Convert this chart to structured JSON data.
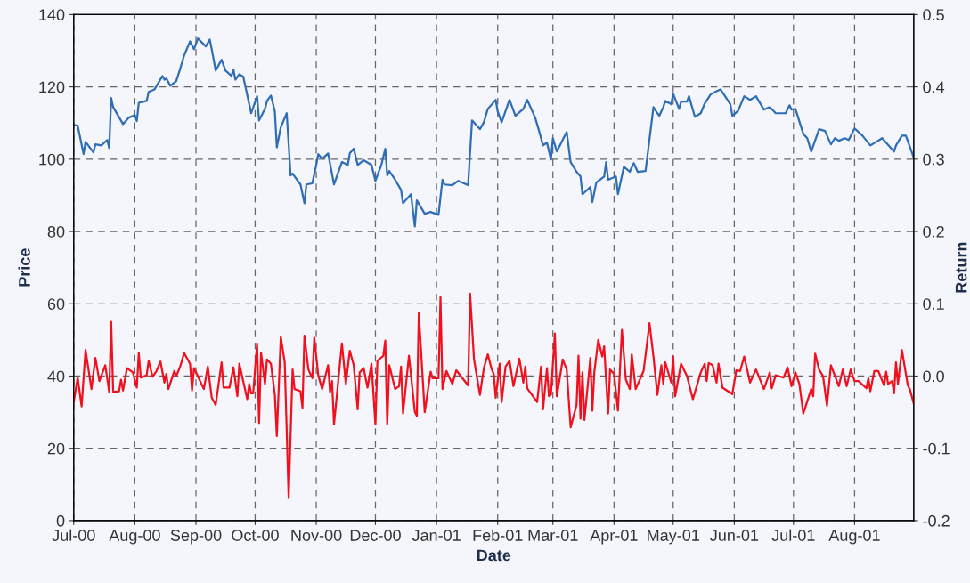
{
  "chart_data": {
    "type": "line",
    "xlabel": "Date",
    "ylabel": "Price",
    "y2label": "Return",
    "xlim": [
      "2000-07-01",
      "2001-08-31"
    ],
    "xticks": [
      {
        "value": "2000-07-01",
        "label": "Jul-00"
      },
      {
        "value": "2000-08-01",
        "label": "Aug-00"
      },
      {
        "value": "2000-09-01",
        "label": "Sep-00"
      },
      {
        "value": "2000-10-01",
        "label": "Oct-00"
      },
      {
        "value": "2000-11-01",
        "label": "Nov-00"
      },
      {
        "value": "2000-12-01",
        "label": "Dec-00"
      },
      {
        "value": "2001-01-01",
        "label": "Jan-01"
      },
      {
        "value": "2001-02-01",
        "label": "Feb-01"
      },
      {
        "value": "2001-03-01",
        "label": "Mar-01"
      },
      {
        "value": "2001-04-01",
        "label": "Apr-01"
      },
      {
        "value": "2001-05-01",
        "label": "May-01"
      },
      {
        "value": "2001-06-01",
        "label": "Jun-01"
      },
      {
        "value": "2001-07-01",
        "label": "Jul-01"
      },
      {
        "value": "2001-08-01",
        "label": "Aug-01"
      }
    ],
    "ylim": [
      0,
      140
    ],
    "yticks": [
      0,
      20,
      40,
      60,
      80,
      100,
      120,
      140
    ],
    "y2lim": [
      -0.2,
      0.5
    ],
    "y2ticks": [
      {
        "value": -0.2,
        "label": "-0.2"
      },
      {
        "value": -0.1,
        "label": "-0.1"
      },
      {
        "value": 0.0,
        "label": "0.0"
      },
      {
        "value": 0.1,
        "label": "0.1"
      },
      {
        "value": 0.2,
        "label": "0.2"
      },
      {
        "value": 0.3,
        "label": "0.3"
      },
      {
        "value": 0.4,
        "label": "0.4"
      },
      {
        "value": 0.5,
        "label": "0.5"
      }
    ],
    "grid": true,
    "series": [
      {
        "axis": "y",
        "color": "#2f6db5",
        "x": [
          "2000-07-01",
          "2000-07-03",
          "2000-07-06",
          "2000-07-07",
          "2000-07-11",
          "2000-07-12",
          "2000-07-15",
          "2000-07-18",
          "2000-07-19",
          "2000-07-20",
          "2000-07-21",
          "2000-07-26",
          "2000-07-29",
          "2000-08-01",
          "2000-08-02",
          "2000-08-03",
          "2000-08-07",
          "2000-08-08",
          "2000-08-11",
          "2000-08-15",
          "2000-08-16",
          "2000-08-17",
          "2000-08-19",
          "2000-08-22",
          "2000-08-24",
          "2000-08-26",
          "2000-08-29",
          "2000-08-31",
          "2000-09-02",
          "2000-09-06",
          "2000-09-08",
          "2000-09-09",
          "2000-09-11",
          "2000-09-14",
          "2000-09-16",
          "2000-09-19",
          "2000-09-20",
          "2000-09-21",
          "2000-09-23",
          "2000-09-25",
          "2000-09-29",
          "2000-10-02",
          "2000-10-03",
          "2000-10-06",
          "2000-10-07",
          "2000-10-09",
          "2000-10-11",
          "2000-10-12",
          "2000-10-14",
          "2000-10-17",
          "2000-10-19",
          "2000-10-20",
          "2000-10-24",
          "2000-10-26",
          "2000-10-27",
          "2000-10-30",
          "2000-11-01",
          "2000-11-02",
          "2000-11-04",
          "2000-11-07",
          "2000-11-10",
          "2000-11-14",
          "2000-11-17",
          "2000-11-18",
          "2000-11-20",
          "2000-11-22",
          "2000-11-25",
          "2000-11-29",
          "2000-12-01",
          "2000-12-04",
          "2000-12-06",
          "2000-12-07",
          "2000-12-08",
          "2000-12-11",
          "2000-12-14",
          "2000-12-15",
          "2000-12-19",
          "2000-12-21",
          "2000-12-22",
          "2000-12-26",
          "2000-12-29",
          "2001-01-02",
          "2001-01-04",
          "2001-01-05",
          "2001-01-09",
          "2001-01-12",
          "2001-01-17",
          "2001-01-19",
          "2001-01-23",
          "2001-01-25",
          "2001-01-27",
          "2001-01-31",
          "2001-02-01",
          "2001-02-03",
          "2001-02-07",
          "2001-02-10",
          "2001-02-14",
          "2001-02-16",
          "2001-02-20",
          "2001-02-22",
          "2001-02-24",
          "2001-02-26",
          "2001-02-28",
          "2001-03-01",
          "2001-03-03",
          "2001-03-08",
          "2001-03-10",
          "2001-03-13",
          "2001-03-15",
          "2001-03-16",
          "2001-03-20",
          "2001-03-21",
          "2001-03-23",
          "2001-03-27",
          "2001-03-28",
          "2001-03-29",
          "2001-04-02",
          "2001-04-03",
          "2001-04-06",
          "2001-04-09",
          "2001-04-11",
          "2001-04-13",
          "2001-04-17",
          "2001-04-21",
          "2001-04-23",
          "2001-04-24",
          "2001-04-26",
          "2001-04-27",
          "2001-04-30",
          "2001-05-01",
          "2001-05-04",
          "2001-05-05",
          "2001-05-08",
          "2001-05-09",
          "2001-05-12",
          "2001-05-15",
          "2001-05-17",
          "2001-05-20",
          "2001-05-23",
          "2001-05-25",
          "2001-05-30",
          "2001-05-31",
          "2001-06-03",
          "2001-06-06",
          "2001-06-09",
          "2001-06-12",
          "2001-06-16",
          "2001-06-19",
          "2001-06-22",
          "2001-06-27",
          "2001-06-29",
          "2001-06-30",
          "2001-07-02",
          "2001-07-06",
          "2001-07-08",
          "2001-07-10",
          "2001-07-14",
          "2001-07-17",
          "2001-07-20",
          "2001-07-22",
          "2001-07-24",
          "2001-07-27",
          "2001-07-29",
          "2001-08-01",
          "2001-08-05",
          "2001-08-09",
          "2001-08-15",
          "2001-08-17",
          "2001-08-21",
          "2001-08-22",
          "2001-08-25",
          "2001-08-27",
          "2001-08-31"
        ],
        "values": [
          109.5,
          109.3,
          101.4,
          104.8,
          101.9,
          104.1,
          103.8,
          105.3,
          103.1,
          116.9,
          114.4,
          109.7,
          111.5,
          112.2,
          110.5,
          115.6,
          116.1,
          118.6,
          119.3,
          123.0,
          122.0,
          122.3,
          120.3,
          121.6,
          125.0,
          128.7,
          132.6,
          130.4,
          133.4,
          131.2,
          133.1,
          130.4,
          124.5,
          127.5,
          124.5,
          123.0,
          124.8,
          122.0,
          123.5,
          122.8,
          112.7,
          117.4,
          110.7,
          113.9,
          116.1,
          117.6,
          113.2,
          103.3,
          108.8,
          112.7,
          95.5,
          96.0,
          93.0,
          87.8,
          93.0,
          93.3,
          98.4,
          101.4,
          100.1,
          101.6,
          93.0,
          99.2,
          98.4,
          101.6,
          102.9,
          98.4,
          99.7,
          98.4,
          94.0,
          98.4,
          102.9,
          95.5,
          96.7,
          94.3,
          91.5,
          87.8,
          90.3,
          81.4,
          88.6,
          84.9,
          85.4,
          84.6,
          94.3,
          93.0,
          92.8,
          94.0,
          92.8,
          110.7,
          108.3,
          110.2,
          113.9,
          116.4,
          113.2,
          110.2,
          116.4,
          112.0,
          113.9,
          116.4,
          111.5,
          107.8,
          103.8,
          104.6,
          99.9,
          105.8,
          102.1,
          107.5,
          99.2,
          96.5,
          95.2,
          90.3,
          92.3,
          88.1,
          93.5,
          95.2,
          99.2,
          94.3,
          95.2,
          90.3,
          97.9,
          96.5,
          98.9,
          96.5,
          96.7,
          114.4,
          112.7,
          112.0,
          114.4,
          116.1,
          115.2,
          118.1,
          113.9,
          115.9,
          115.9,
          117.4,
          111.7,
          112.7,
          115.4,
          117.9,
          118.8,
          119.3,
          115.2,
          112.0,
          113.4,
          117.4,
          116.4,
          117.4,
          113.7,
          114.4,
          112.7,
          112.7,
          114.9,
          113.7,
          113.9,
          107.0,
          105.8,
          102.1,
          108.3,
          107.8,
          104.1,
          105.8,
          105.1,
          105.8,
          105.3,
          108.5,
          106.5,
          103.8,
          105.8,
          104.6,
          102.1,
          103.8,
          106.5,
          106.5,
          100.4
        ]
      },
      {
        "axis": "y2",
        "color": "#f0101e",
        "x": [
          "2000-07-01",
          "2000-07-03",
          "2000-07-05",
          "2000-07-07",
          "2000-07-10",
          "2000-07-12",
          "2000-07-14",
          "2000-07-17",
          "2000-07-19",
          "2000-07-20",
          "2000-07-21",
          "2000-07-24",
          "2000-07-25",
          "2000-07-26",
          "2000-07-28",
          "2000-07-31",
          "2000-08-02",
          "2000-08-03",
          "2000-08-04",
          "2000-08-07",
          "2000-08-08",
          "2000-08-10",
          "2000-08-12",
          "2000-08-14",
          "2000-08-16",
          "2000-08-17",
          "2000-08-18",
          "2000-08-21",
          "2000-08-22",
          "2000-08-24",
          "2000-08-26",
          "2000-08-29",
          "2000-08-30",
          "2000-08-31",
          "2000-09-05",
          "2000-09-07",
          "2000-09-09",
          "2000-09-11",
          "2000-09-14",
          "2000-09-15",
          "2000-09-18",
          "2000-09-20",
          "2000-09-22",
          "2000-09-23",
          "2000-09-27",
          "2000-09-28",
          "2000-09-29",
          "2000-09-30",
          "2000-10-02",
          "2000-10-03",
          "2000-10-04",
          "2000-10-06",
          "2000-10-07",
          "2000-10-09",
          "2000-10-11",
          "2000-10-12",
          "2000-10-14",
          "2000-10-16",
          "2000-10-18",
          "2000-10-20",
          "2000-10-21",
          "2000-10-24",
          "2000-10-25",
          "2000-10-26",
          "2000-10-28",
          "2000-10-30",
          "2000-10-31",
          "2000-11-02",
          "2000-11-04",
          "2000-11-07",
          "2000-11-08",
          "2000-11-09",
          "2000-11-10",
          "2000-11-14",
          "2000-11-16",
          "2000-11-18",
          "2000-11-20",
          "2000-11-22",
          "2000-11-23",
          "2000-11-25",
          "2000-11-27",
          "2000-11-29",
          "2000-12-01",
          "2000-12-02",
          "2000-12-05",
          "2000-12-06",
          "2000-12-07",
          "2000-12-08",
          "2000-12-11",
          "2000-12-13",
          "2000-12-14",
          "2000-12-15",
          "2000-12-18",
          "2000-12-21",
          "2000-12-22",
          "2000-12-23",
          "2000-12-26",
          "2000-12-29",
          "2000-12-30",
          "2001-01-02",
          "2001-01-03",
          "2001-01-04",
          "2001-01-06",
          "2001-01-09",
          "2001-01-11",
          "2001-01-17",
          "2001-01-18",
          "2001-01-20",
          "2001-01-23",
          "2001-01-25",
          "2001-01-27",
          "2001-01-29",
          "2001-01-30",
          "2001-01-31",
          "2001-02-02",
          "2001-02-03",
          "2001-02-05",
          "2001-02-07",
          "2001-02-09",
          "2001-02-12",
          "2001-02-14",
          "2001-02-15",
          "2001-02-16",
          "2001-02-21",
          "2001-02-23",
          "2001-02-24",
          "2001-02-26",
          "2001-02-27",
          "2001-02-28",
          "2001-03-02",
          "2001-03-03",
          "2001-03-06",
          "2001-03-08",
          "2001-03-10",
          "2001-03-13",
          "2001-03-14",
          "2001-03-15",
          "2001-03-16",
          "2001-03-17",
          "2001-03-20",
          "2001-03-21",
          "2001-03-22",
          "2001-03-24",
          "2001-03-26",
          "2001-03-27",
          "2001-03-29",
          "2001-03-30",
          "2001-04-01",
          "2001-04-03",
          "2001-04-05",
          "2001-04-07",
          "2001-04-09",
          "2001-04-10",
          "2001-04-12",
          "2001-04-16",
          "2001-04-19",
          "2001-04-21",
          "2001-04-23",
          "2001-04-25",
          "2001-04-26",
          "2001-04-27",
          "2001-04-30",
          "2001-05-01",
          "2001-05-02",
          "2001-05-05",
          "2001-05-08",
          "2001-05-11",
          "2001-05-15",
          "2001-05-17",
          "2001-05-18",
          "2001-05-19",
          "2001-05-21",
          "2001-05-23",
          "2001-05-24",
          "2001-05-26",
          "2001-05-31",
          "2001-06-02",
          "2001-06-04",
          "2001-06-06",
          "2001-06-09",
          "2001-06-12",
          "2001-06-16",
          "2001-06-19",
          "2001-06-20",
          "2001-06-22",
          "2001-06-26",
          "2001-06-28",
          "2001-06-30",
          "2001-07-02",
          "2001-07-04",
          "2001-07-06",
          "2001-07-10",
          "2001-07-11",
          "2001-07-12",
          "2001-07-14",
          "2001-07-16",
          "2001-07-18",
          "2001-07-20",
          "2001-07-24",
          "2001-07-26",
          "2001-07-28",
          "2001-07-30",
          "2001-08-01",
          "2001-08-03",
          "2001-08-07",
          "2001-08-08",
          "2001-08-09",
          "2001-08-11",
          "2001-08-13",
          "2001-08-16",
          "2001-08-17",
          "2001-08-18",
          "2001-08-20",
          "2001-08-21",
          "2001-08-22",
          "2001-08-23",
          "2001-08-25",
          "2001-08-28",
          "2001-08-29",
          "2001-08-31"
        ],
        "values": [
          -0.036,
          -0.002,
          -0.042,
          0.036,
          -0.018,
          0.025,
          -0.007,
          0.015,
          -0.022,
          0.075,
          -0.022,
          -0.021,
          -0.005,
          -0.02,
          0.011,
          0.005,
          -0.016,
          0.032,
          -0.002,
          0.001,
          0.021,
          -0.001,
          0.007,
          0.02,
          -0.009,
          0.003,
          -0.018,
          0.007,
          0.0,
          0.013,
          0.032,
          0.017,
          -0.02,
          0.011,
          -0.018,
          0.013,
          -0.03,
          -0.04,
          0.019,
          -0.016,
          -0.016,
          0.012,
          -0.028,
          0.017,
          -0.032,
          -0.011,
          -0.024,
          -0.024,
          0.045,
          -0.065,
          0.032,
          -0.011,
          0.023,
          0.017,
          -0.026,
          -0.083,
          0.054,
          0.019,
          -0.169,
          0.009,
          -0.018,
          -0.021,
          -0.044,
          0.056,
          0.009,
          -0.003,
          0.053,
          0.001,
          -0.018,
          0.015,
          -0.022,
          -0.007,
          -0.067,
          0.045,
          -0.011,
          0.035,
          0.015,
          -0.046,
          0.005,
          0.011,
          -0.016,
          0.017,
          -0.067,
          0.021,
          0.028,
          0.049,
          -0.067,
          0.015,
          -0.018,
          -0.014,
          0.013,
          -0.052,
          0.028,
          -0.05,
          -0.055,
          0.087,
          -0.05,
          0.006,
          -0.003,
          -0.003,
          0.109,
          -0.018,
          0.007,
          -0.011,
          0.008,
          -0.013,
          0.114,
          0.023,
          -0.026,
          0.011,
          0.03,
          0.009,
          0.003,
          -0.03,
          0.017,
          -0.036,
          0.013,
          0.021,
          -0.014,
          0.024,
          -0.009,
          0.013,
          -0.017,
          -0.036,
          0.013,
          -0.046,
          0.011,
          -0.028,
          -0.026,
          0.059,
          -0.028,
          0.023,
          0.009,
          -0.071,
          -0.04,
          0.028,
          -0.059,
          0.005,
          -0.061,
          0.025,
          -0.048,
          0.005,
          0.05,
          0.027,
          0.041,
          -0.052,
          0.009,
          0.003,
          -0.048,
          0.064,
          -0.005,
          -0.018,
          0.03,
          -0.018,
          0.007,
          0.073,
          0.027,
          -0.026,
          0.015,
          -0.011,
          0.019,
          -0.009,
          0.027,
          -0.028,
          0.017,
          0.0,
          -0.032,
          0.005,
          0.017,
          -0.007,
          0.018,
          0.015,
          -0.009,
          0.017,
          -0.016,
          -0.025,
          0.008,
          0.007,
          0.027,
          -0.009,
          0.009,
          -0.018,
          0.005,
          -0.017,
          0.001,
          -0.002,
          0.012,
          -0.014,
          0.005,
          -0.011,
          -0.052,
          -0.018,
          -0.028,
          0.031,
          0.009,
          0.0,
          -0.041,
          0.015,
          -0.014,
          0.009,
          -0.014,
          0.009,
          -0.007,
          -0.007,
          -0.017,
          -0.003,
          -0.021,
          0.007,
          0.007,
          -0.013,
          0.006,
          -0.011,
          -0.007,
          -0.024,
          0.019,
          -0.011,
          0.036,
          -0.013,
          -0.018,
          -0.038
        ]
      }
    ]
  }
}
